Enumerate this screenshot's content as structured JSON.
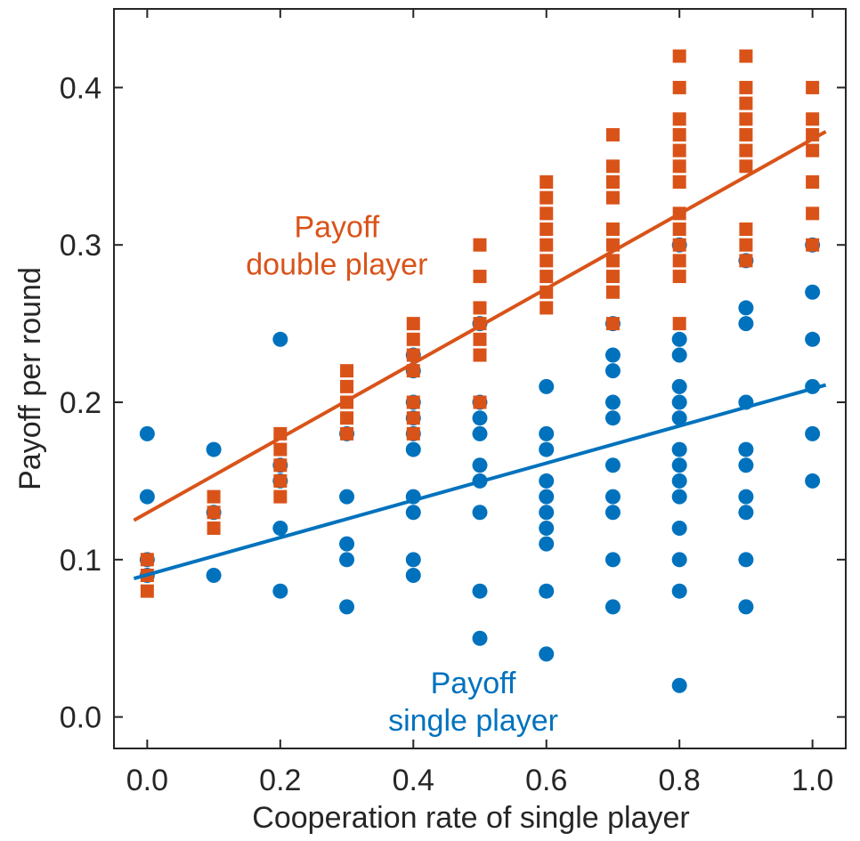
{
  "chart_data": {
    "type": "scatter",
    "title": "",
    "xlabel": "Cooperation rate of single player",
    "ylabel": "Payoff per round",
    "xlim": [
      -0.05,
      1.05
    ],
    "ylim": [
      -0.02,
      0.45
    ],
    "xticks": [
      0.0,
      0.2,
      0.4,
      0.6,
      0.8,
      1.0
    ],
    "xtick_labels": [
      "0.0",
      "0.2",
      "0.4",
      "0.6",
      "0.8",
      "1.0"
    ],
    "yticks": [
      0.0,
      0.1,
      0.2,
      0.3,
      0.4
    ],
    "ytick_labels": [
      "0.0",
      "0.1",
      "0.2",
      "0.3",
      "0.4"
    ],
    "grid": false,
    "annotations": [
      {
        "id": "double",
        "lines": [
          "Payoff",
          "double player"
        ],
        "color": "#D95319",
        "x": 0.285,
        "y": 0.305
      },
      {
        "id": "single",
        "lines": [
          "Payoff",
          "single player"
        ],
        "color": "#0072BD",
        "x": 0.49,
        "y": 0.015
      }
    ],
    "series": [
      {
        "id": "double_player",
        "marker": "square",
        "color": "#D95319",
        "points": [
          [
            0.0,
            0.08
          ],
          [
            0.0,
            0.09
          ],
          [
            0.0,
            0.1
          ],
          [
            0.1,
            0.12
          ],
          [
            0.1,
            0.13
          ],
          [
            0.1,
            0.14
          ],
          [
            0.2,
            0.14
          ],
          [
            0.2,
            0.15
          ],
          [
            0.2,
            0.16
          ],
          [
            0.2,
            0.17
          ],
          [
            0.2,
            0.18
          ],
          [
            0.3,
            0.18
          ],
          [
            0.3,
            0.19
          ],
          [
            0.3,
            0.2
          ],
          [
            0.3,
            0.21
          ],
          [
            0.3,
            0.22
          ],
          [
            0.4,
            0.18
          ],
          [
            0.4,
            0.19
          ],
          [
            0.4,
            0.2
          ],
          [
            0.4,
            0.22
          ],
          [
            0.4,
            0.23
          ],
          [
            0.4,
            0.24
          ],
          [
            0.4,
            0.25
          ],
          [
            0.5,
            0.2
          ],
          [
            0.5,
            0.23
          ],
          [
            0.5,
            0.24
          ],
          [
            0.5,
            0.25
          ],
          [
            0.5,
            0.26
          ],
          [
            0.5,
            0.28
          ],
          [
            0.5,
            0.3
          ],
          [
            0.6,
            0.26
          ],
          [
            0.6,
            0.27
          ],
          [
            0.6,
            0.28
          ],
          [
            0.6,
            0.29
          ],
          [
            0.6,
            0.3
          ],
          [
            0.6,
            0.31
          ],
          [
            0.6,
            0.32
          ],
          [
            0.6,
            0.33
          ],
          [
            0.6,
            0.34
          ],
          [
            0.7,
            0.25
          ],
          [
            0.7,
            0.27
          ],
          [
            0.7,
            0.28
          ],
          [
            0.7,
            0.29
          ],
          [
            0.7,
            0.3
          ],
          [
            0.7,
            0.31
          ],
          [
            0.7,
            0.33
          ],
          [
            0.7,
            0.34
          ],
          [
            0.7,
            0.35
          ],
          [
            0.7,
            0.37
          ],
          [
            0.8,
            0.25
          ],
          [
            0.8,
            0.28
          ],
          [
            0.8,
            0.29
          ],
          [
            0.8,
            0.3
          ],
          [
            0.8,
            0.31
          ],
          [
            0.8,
            0.32
          ],
          [
            0.8,
            0.34
          ],
          [
            0.8,
            0.35
          ],
          [
            0.8,
            0.36
          ],
          [
            0.8,
            0.37
          ],
          [
            0.8,
            0.38
          ],
          [
            0.8,
            0.4
          ],
          [
            0.8,
            0.42
          ],
          [
            0.9,
            0.29
          ],
          [
            0.9,
            0.3
          ],
          [
            0.9,
            0.31
          ],
          [
            0.9,
            0.35
          ],
          [
            0.9,
            0.36
          ],
          [
            0.9,
            0.37
          ],
          [
            0.9,
            0.38
          ],
          [
            0.9,
            0.39
          ],
          [
            0.9,
            0.4
          ],
          [
            0.9,
            0.42
          ],
          [
            1.0,
            0.3
          ],
          [
            1.0,
            0.32
          ],
          [
            1.0,
            0.34
          ],
          [
            1.0,
            0.36
          ],
          [
            1.0,
            0.37
          ],
          [
            1.0,
            0.38
          ],
          [
            1.0,
            0.4
          ]
        ],
        "fit": {
          "x": [
            -0.02,
            1.02
          ],
          "y": [
            0.125,
            0.372
          ]
        }
      },
      {
        "id": "single_player",
        "marker": "circle",
        "color": "#0072BD",
        "points": [
          [
            0.0,
            0.09
          ],
          [
            0.0,
            0.1
          ],
          [
            0.0,
            0.14
          ],
          [
            0.0,
            0.18
          ],
          [
            0.1,
            0.09
          ],
          [
            0.1,
            0.13
          ],
          [
            0.1,
            0.17
          ],
          [
            0.2,
            0.08
          ],
          [
            0.2,
            0.12
          ],
          [
            0.2,
            0.15
          ],
          [
            0.2,
            0.16
          ],
          [
            0.2,
            0.24
          ],
          [
            0.3,
            0.07
          ],
          [
            0.3,
            0.1
          ],
          [
            0.3,
            0.11
          ],
          [
            0.3,
            0.14
          ],
          [
            0.3,
            0.18
          ],
          [
            0.4,
            0.09
          ],
          [
            0.4,
            0.1
          ],
          [
            0.4,
            0.13
          ],
          [
            0.4,
            0.14
          ],
          [
            0.4,
            0.17
          ],
          [
            0.4,
            0.18
          ],
          [
            0.4,
            0.19
          ],
          [
            0.4,
            0.2
          ],
          [
            0.4,
            0.22
          ],
          [
            0.4,
            0.23
          ],
          [
            0.5,
            0.05
          ],
          [
            0.5,
            0.08
          ],
          [
            0.5,
            0.13
          ],
          [
            0.5,
            0.15
          ],
          [
            0.5,
            0.16
          ],
          [
            0.5,
            0.18
          ],
          [
            0.5,
            0.19
          ],
          [
            0.5,
            0.2
          ],
          [
            0.5,
            0.25
          ],
          [
            0.6,
            0.04
          ],
          [
            0.6,
            0.08
          ],
          [
            0.6,
            0.11
          ],
          [
            0.6,
            0.12
          ],
          [
            0.6,
            0.13
          ],
          [
            0.6,
            0.14
          ],
          [
            0.6,
            0.15
          ],
          [
            0.6,
            0.17
          ],
          [
            0.6,
            0.18
          ],
          [
            0.6,
            0.21
          ],
          [
            0.7,
            0.07
          ],
          [
            0.7,
            0.1
          ],
          [
            0.7,
            0.13
          ],
          [
            0.7,
            0.14
          ],
          [
            0.7,
            0.16
          ],
          [
            0.7,
            0.19
          ],
          [
            0.7,
            0.2
          ],
          [
            0.7,
            0.22
          ],
          [
            0.7,
            0.23
          ],
          [
            0.7,
            0.25
          ],
          [
            0.8,
            0.02
          ],
          [
            0.8,
            0.08
          ],
          [
            0.8,
            0.1
          ],
          [
            0.8,
            0.12
          ],
          [
            0.8,
            0.14
          ],
          [
            0.8,
            0.15
          ],
          [
            0.8,
            0.16
          ],
          [
            0.8,
            0.17
          ],
          [
            0.8,
            0.19
          ],
          [
            0.8,
            0.2
          ],
          [
            0.8,
            0.21
          ],
          [
            0.8,
            0.23
          ],
          [
            0.8,
            0.24
          ],
          [
            0.8,
            0.3
          ],
          [
            0.9,
            0.07
          ],
          [
            0.9,
            0.1
          ],
          [
            0.9,
            0.13
          ],
          [
            0.9,
            0.14
          ],
          [
            0.9,
            0.16
          ],
          [
            0.9,
            0.17
          ],
          [
            0.9,
            0.2
          ],
          [
            0.9,
            0.25
          ],
          [
            0.9,
            0.26
          ],
          [
            0.9,
            0.29
          ],
          [
            1.0,
            0.15
          ],
          [
            1.0,
            0.18
          ],
          [
            1.0,
            0.21
          ],
          [
            1.0,
            0.24
          ],
          [
            1.0,
            0.27
          ],
          [
            1.0,
            0.3
          ]
        ],
        "fit": {
          "x": [
            -0.02,
            1.02
          ],
          "y": [
            0.088,
            0.211
          ]
        }
      }
    ]
  }
}
